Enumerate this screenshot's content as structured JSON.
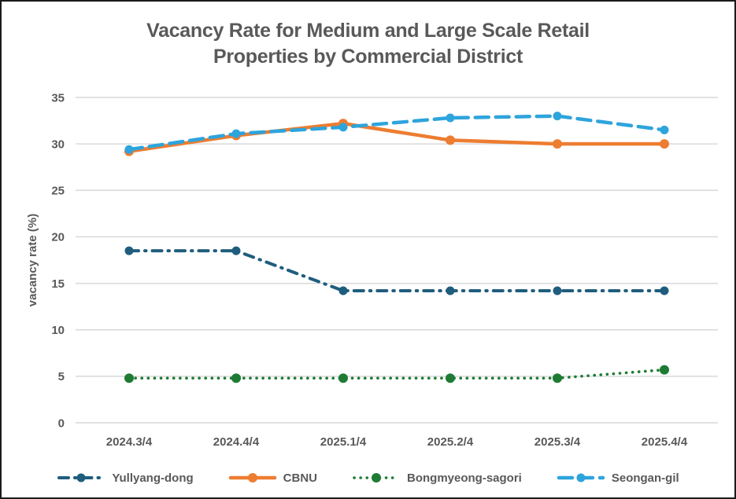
{
  "title": {
    "line1": "Vacancy Rate for Medium and Large Scale Retail",
    "line2": "Properties by Commercial District"
  },
  "y_axis": {
    "label": "vacancy rate (%)",
    "ticks": [
      0,
      5,
      10,
      15,
      20,
      25,
      30,
      35
    ]
  },
  "chart_data": {
    "type": "line",
    "title": "Vacancy Rate for Medium and Large Scale Retail Properties by Commercial District",
    "xlabel": "",
    "ylabel": "vacancy rate (%)",
    "ylim": [
      0,
      35
    ],
    "grid": "horizontal",
    "legend_position": "bottom",
    "categories": [
      "2024.3/4",
      "2024.4/4",
      "2025.1/4",
      "2025.2/4",
      "2025.3/4",
      "2025.4/4"
    ],
    "series": [
      {
        "name": "Yullyang-dong",
        "color": "#1F5D7E",
        "line_style": "dashdot",
        "values": [
          18.5,
          18.5,
          14.2,
          14.2,
          14.2,
          14.2
        ]
      },
      {
        "name": "CBNU",
        "color": "#ED7D31",
        "line_style": "solid",
        "values": [
          29.2,
          30.9,
          32.2,
          30.4,
          30.0,
          30.0
        ]
      },
      {
        "name": "Bongmyeong-sagori",
        "color": "#1E7B34",
        "line_style": "dotted",
        "values": [
          4.8,
          4.8,
          4.8,
          4.8,
          4.8,
          5.7
        ]
      },
      {
        "name": "Seongan-gil",
        "color": "#2EA4DC",
        "line_style": "dashed",
        "values": [
          29.4,
          31.1,
          31.8,
          32.8,
          33.0,
          31.5
        ]
      }
    ]
  },
  "colors": {
    "text": "#595959",
    "gridline": "#D9D9D9",
    "background": "#FFFFFF",
    "border": "#1A1A1A"
  }
}
